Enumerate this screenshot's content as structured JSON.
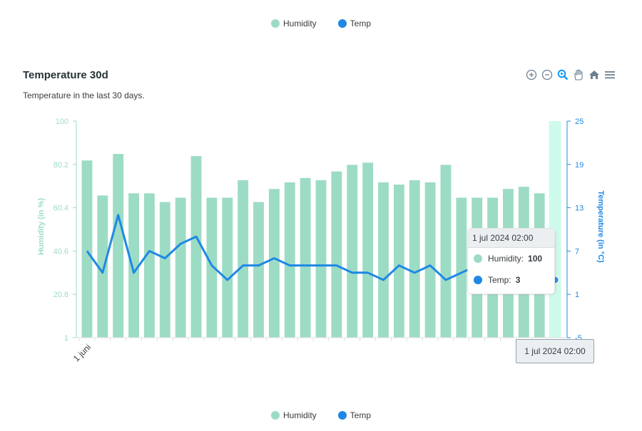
{
  "legend": [
    {
      "label": "Humidity",
      "color": "#9ddcc4"
    },
    {
      "label": "Temp",
      "color": "#1e88e5"
    }
  ],
  "header": {
    "title": "Temperature 30d",
    "subtitle": "Temperature in the last 30 days."
  },
  "toolbar": {
    "icons": [
      "zoom-in-icon",
      "zoom-out-icon",
      "selection-zoom-icon",
      "pan-hand-icon",
      "home-reset-icon",
      "menu-icon"
    ]
  },
  "chart_data": {
    "type": "bar",
    "title": "Temperature 30d",
    "subtitle": "Temperature in the last 30 days.",
    "x_tick_labels": [
      "1 juni"
    ],
    "y_left": {
      "label": "Humidity (in %)",
      "ticks": [
        "100",
        "80.2",
        "60.4",
        "40.6",
        "20.8",
        "1"
      ],
      "range": [
        1,
        100
      ],
      "color": "#9ddcc4"
    },
    "y_right": {
      "label": "Temperature (in °C)",
      "ticks": [
        "25",
        "19",
        "13",
        "7",
        "1",
        "-5"
      ],
      "range": [
        -5,
        25
      ],
      "color": "#1e88e5"
    },
    "series": [
      {
        "name": "Humidity",
        "type": "bar",
        "color": "#9ddcc4",
        "values": [
          82,
          66,
          85,
          67,
          67,
          63,
          65,
          84,
          65,
          65,
          73,
          63,
          69,
          72,
          74,
          73,
          77,
          80,
          81,
          72,
          71,
          73,
          72,
          80,
          65,
          65,
          65,
          69,
          70,
          67,
          100
        ]
      },
      {
        "name": "Temp",
        "type": "line",
        "color": "#1e88e5",
        "values": [
          7,
          4,
          12,
          4,
          7,
          6,
          8,
          9,
          5,
          3,
          5,
          5,
          6,
          5,
          5,
          5,
          5,
          4,
          4,
          3,
          5,
          4,
          5,
          3,
          4,
          5,
          4,
          4,
          3,
          3,
          3
        ]
      }
    ],
    "highlighted_index": 30,
    "tooltip": {
      "title": "1 jul 2024 02:00",
      "rows": [
        {
          "label": "Humidity:",
          "value": "100",
          "color": "#9ddcc4"
        },
        {
          "label": "Temp:",
          "value": "3",
          "color": "#1e88e5"
        }
      ]
    },
    "x_tooltip": "1 jul 2024 02:00",
    "grid": false,
    "legend_position": "top and bottom"
  }
}
